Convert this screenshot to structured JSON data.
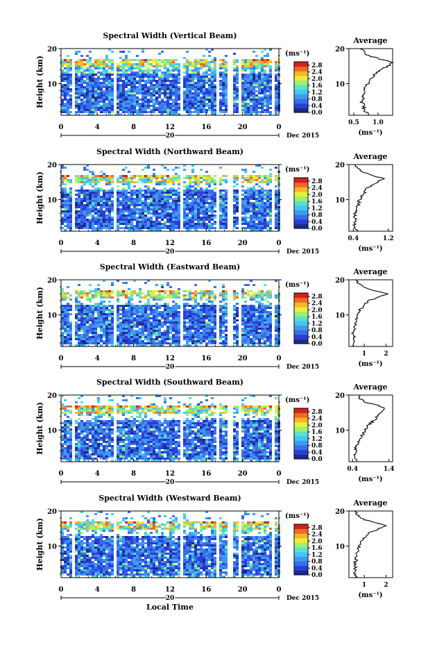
{
  "figure": {
    "xlabel": "Local Time",
    "date_label": "Dec 2015",
    "day_label": "20",
    "ylabel": "Height (km)",
    "colorbar_unit": "(ms⁻¹)",
    "colorbar_ticks": [
      "2.8",
      "2.4",
      "2.0",
      "1.6",
      "1.2",
      "0.8",
      "0.4",
      "0.0"
    ],
    "profile_title": "Average",
    "profile_xlabel": "(ms⁻¹)",
    "x_ticks": [
      "0",
      "4",
      "8",
      "12",
      "16",
      "20",
      "0"
    ],
    "y_ticks": [
      "20",
      "10"
    ],
    "colormap": [
      "#1c2a8c",
      "#2a3fd6",
      "#3a6ee8",
      "#3f9bf0",
      "#43c6f2",
      "#5fe0c8",
      "#9df070",
      "#e8ef3a",
      "#f6b52a",
      "#f06a24",
      "#d2231e"
    ]
  },
  "chart_data": [
    {
      "type": "heatmap",
      "title": "Spectral Width (Vertical Beam)",
      "x_range": [
        0,
        24
      ],
      "y_range": [
        1,
        20
      ],
      "c_range": [
        0.0,
        3.0
      ],
      "gaps_hours": [
        [
          1.1,
          1.5
        ],
        [
          5.8,
          6.1
        ],
        [
          13.0,
          13.3
        ],
        [
          17.0,
          17.4
        ],
        [
          18.3,
          18.7
        ],
        [
          19.4,
          19.7
        ],
        [
          23.0,
          23.4
        ]
      ],
      "profile": {
        "heights": [
          1,
          2,
          3,
          4,
          5,
          6,
          7,
          8,
          9,
          10,
          11,
          12,
          13,
          14,
          15,
          16,
          17,
          18,
          19,
          20
        ],
        "values": [
          0.8,
          0.75,
          0.7,
          0.72,
          0.65,
          0.7,
          0.72,
          0.75,
          0.7,
          0.8,
          0.85,
          0.9,
          0.95,
          1.05,
          1.2,
          1.3,
          1.05,
          0.8,
          0.7,
          0.65
        ],
        "xlim": [
          0.4,
          1.3
        ],
        "xticks": [
          "0.5",
          "1.0"
        ]
      }
    },
    {
      "type": "heatmap",
      "title": "Spectral Width (Northward Beam)",
      "x_range": [
        0,
        24
      ],
      "y_range": [
        1,
        20
      ],
      "c_range": [
        0.0,
        3.0
      ],
      "gaps_hours": [
        [
          1.1,
          1.5
        ],
        [
          5.8,
          6.1
        ],
        [
          13.0,
          13.3
        ],
        [
          17.0,
          17.4
        ],
        [
          18.3,
          18.7
        ],
        [
          19.4,
          19.7
        ],
        [
          23.0,
          23.4
        ]
      ],
      "profile": {
        "heights": [
          1,
          2,
          3,
          4,
          5,
          6,
          7,
          8,
          9,
          10,
          11,
          12,
          13,
          14,
          15,
          16,
          17,
          18,
          19,
          20
        ],
        "values": [
          0.5,
          0.45,
          0.42,
          0.45,
          0.43,
          0.45,
          0.48,
          0.5,
          0.52,
          0.55,
          0.6,
          0.65,
          0.7,
          0.8,
          0.95,
          1.1,
          0.8,
          0.6,
          0.5,
          0.45
        ],
        "xlim": [
          0.3,
          1.3
        ],
        "xticks": [
          "0.4",
          "1.2"
        ]
      }
    },
    {
      "type": "heatmap",
      "title": "Spectral Width (Eastward Beam)",
      "x_range": [
        0,
        24
      ],
      "y_range": [
        1,
        20
      ],
      "c_range": [
        0.0,
        3.0
      ],
      "gaps_hours": [
        [
          1.1,
          1.5
        ],
        [
          5.8,
          6.1
        ],
        [
          13.0,
          13.3
        ],
        [
          17.0,
          17.4
        ],
        [
          18.3,
          18.7
        ],
        [
          19.4,
          19.7
        ],
        [
          23.0,
          23.4
        ]
      ],
      "profile": {
        "heights": [
          1,
          2,
          3,
          4,
          5,
          6,
          7,
          8,
          9,
          10,
          11,
          12,
          13,
          14,
          15,
          16,
          17,
          18,
          19,
          20
        ],
        "values": [
          0.55,
          0.5,
          0.5,
          0.52,
          0.5,
          0.55,
          0.6,
          0.62,
          0.65,
          0.7,
          0.75,
          0.9,
          1.0,
          1.2,
          1.6,
          2.1,
          1.4,
          0.9,
          0.7,
          0.6
        ],
        "xlim": [
          0.3,
          2.3
        ],
        "xticks": [
          "1",
          "2"
        ]
      }
    },
    {
      "type": "heatmap",
      "title": "Spectral Width (Southward Beam)",
      "x_range": [
        0,
        24
      ],
      "y_range": [
        1,
        20
      ],
      "c_range": [
        0.0,
        3.0
      ],
      "gaps_hours": [
        [
          1.1,
          1.5
        ],
        [
          5.8,
          6.1
        ],
        [
          13.0,
          13.3
        ],
        [
          17.0,
          17.4
        ],
        [
          18.3,
          18.7
        ],
        [
          19.4,
          19.7
        ],
        [
          23.0,
          23.4
        ]
      ],
      "profile": {
        "heights": [
          1,
          2,
          3,
          4,
          5,
          6,
          7,
          8,
          9,
          10,
          11,
          12,
          13,
          14,
          15,
          16,
          17,
          18,
          19,
          20
        ],
        "values": [
          0.5,
          0.45,
          0.45,
          0.48,
          0.5,
          0.55,
          0.6,
          0.62,
          0.7,
          0.75,
          0.8,
          0.9,
          1.0,
          1.1,
          1.2,
          1.3,
          1.1,
          0.75,
          0.6,
          0.55
        ],
        "xlim": [
          0.3,
          1.5
        ],
        "xticks": [
          "0.4",
          "1.4"
        ]
      }
    },
    {
      "type": "heatmap",
      "title": "Spectral Width (Westward Beam)",
      "x_range": [
        0,
        24
      ],
      "y_range": [
        1,
        20
      ],
      "c_range": [
        0.0,
        3.0
      ],
      "gaps_hours": [
        [
          1.1,
          1.5
        ],
        [
          5.8,
          6.1
        ],
        [
          13.0,
          13.3
        ],
        [
          17.0,
          17.4
        ],
        [
          18.3,
          18.7
        ],
        [
          19.4,
          19.7
        ],
        [
          23.0,
          23.4
        ]
      ],
      "profile": {
        "heights": [
          1,
          2,
          3,
          4,
          5,
          6,
          7,
          8,
          9,
          10,
          11,
          12,
          13,
          14,
          15,
          16,
          17,
          18,
          19,
          20
        ],
        "values": [
          0.6,
          0.55,
          0.55,
          0.6,
          0.58,
          0.62,
          0.65,
          0.7,
          0.72,
          0.78,
          0.85,
          0.95,
          1.05,
          1.3,
          1.7,
          2.0,
          1.3,
          0.8,
          0.65,
          0.6
        ],
        "xlim": [
          0.3,
          2.3
        ],
        "xticks": [
          "1",
          "2"
        ]
      }
    }
  ]
}
